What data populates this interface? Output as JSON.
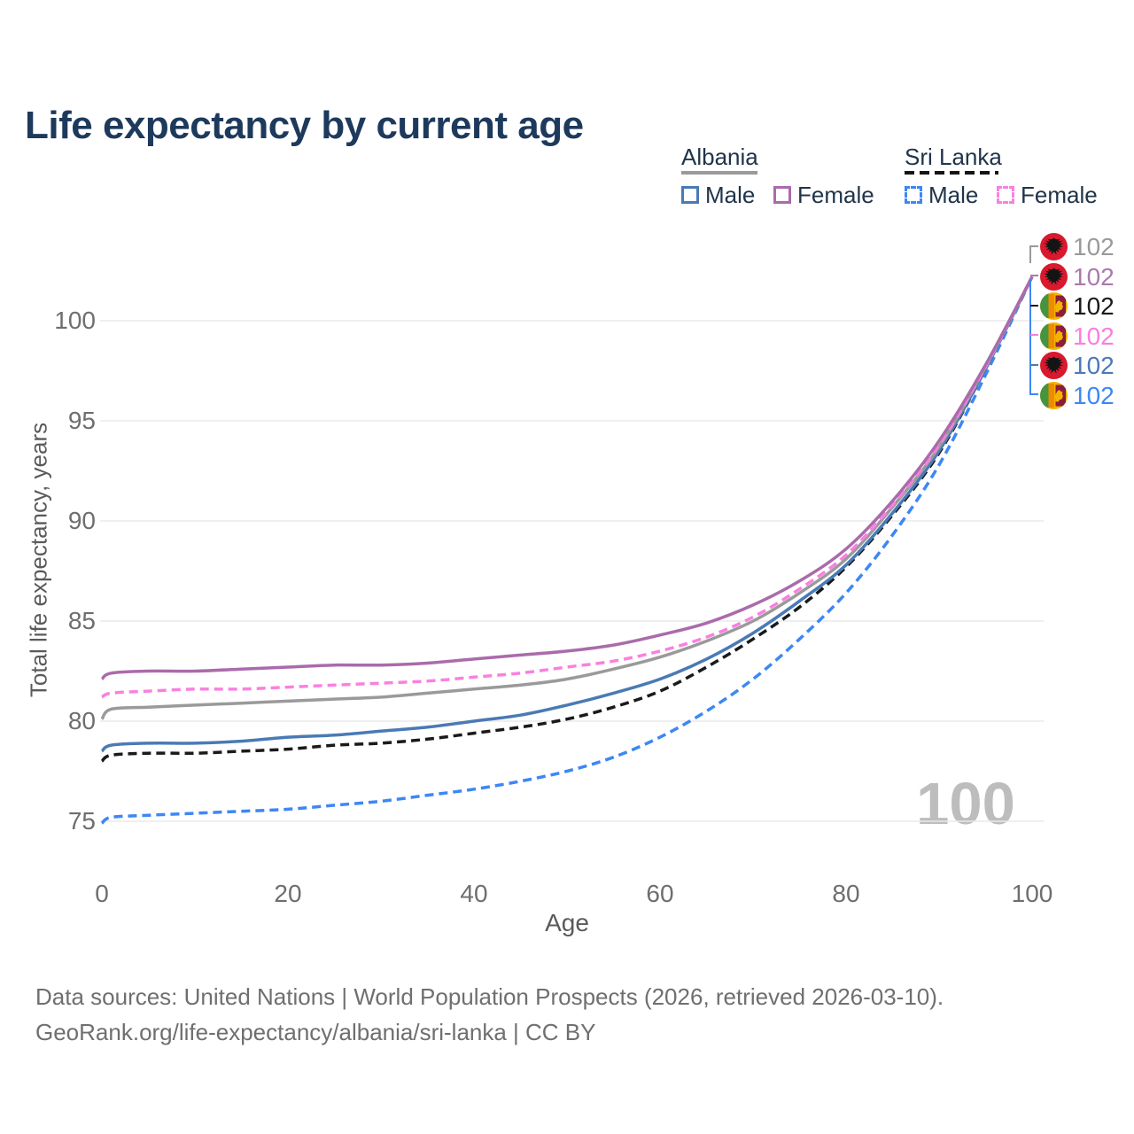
{
  "header": {
    "title": "Life expectancy by current age"
  },
  "legend": {
    "groups": [
      {
        "country": "Albania",
        "line_style": "solid",
        "line_color": "#9a9a9a",
        "items": [
          {
            "label": "Male",
            "color": "#4a7ab5",
            "style": "solid"
          },
          {
            "label": "Female",
            "color": "#aa6bab",
            "style": "solid"
          }
        ]
      },
      {
        "country": "Sri Lanka",
        "line_style": "dashed",
        "line_color": "#141414",
        "items": [
          {
            "label": "Male",
            "color": "#3d87f5",
            "style": "dashed"
          },
          {
            "label": "Female",
            "color": "#fa80e0",
            "style": "dashed"
          }
        ]
      }
    ]
  },
  "chart_data": {
    "type": "line",
    "title": "Life expectancy by current age",
    "xlabel": "Age",
    "ylabel": "Total life expectancy, years",
    "xlim": [
      0,
      100
    ],
    "ylim": [
      73.5,
      103
    ],
    "xticks": [
      0,
      20,
      40,
      60,
      80,
      100
    ],
    "yticks": [
      75,
      80,
      85,
      90,
      95,
      100
    ],
    "grid": "horizontal",
    "legend_position": "top-right",
    "x": [
      0,
      1,
      5,
      10,
      15,
      20,
      25,
      30,
      35,
      40,
      45,
      50,
      55,
      60,
      65,
      70,
      75,
      80,
      85,
      90,
      95,
      100
    ],
    "series": [
      {
        "name": "Sri Lanka — Male",
        "country": "Sri Lanka",
        "sex": "male",
        "color": "#3d87f5",
        "dash": true,
        "values": [
          74.9,
          75.2,
          75.3,
          75.4,
          75.5,
          75.6,
          75.8,
          76.0,
          76.3,
          76.6,
          77.0,
          77.5,
          78.2,
          79.2,
          80.5,
          82.1,
          84.1,
          86.4,
          89.3,
          92.8,
          97.3,
          102.2
        ]
      },
      {
        "name": "Sri Lanka — Both sexes",
        "country": "Sri Lanka",
        "sex": "both",
        "color": "#1a1a1a",
        "dash": true,
        "values": [
          78.0,
          78.3,
          78.4,
          78.4,
          78.5,
          78.6,
          78.8,
          78.9,
          79.1,
          79.4,
          79.7,
          80.1,
          80.7,
          81.5,
          82.7,
          84.1,
          85.7,
          87.7,
          90.3,
          93.4,
          97.6,
          102.2
        ]
      },
      {
        "name": "Albania — Male",
        "country": "Albania",
        "sex": "male",
        "color": "#4a7ab5",
        "dash": false,
        "values": [
          78.5,
          78.8,
          78.9,
          78.9,
          79.0,
          79.2,
          79.3,
          79.5,
          79.7,
          80.0,
          80.3,
          80.8,
          81.4,
          82.1,
          83.1,
          84.4,
          86.0,
          87.8,
          90.4,
          93.5,
          97.6,
          102.2
        ]
      },
      {
        "name": "Albania — Both sexes",
        "country": "Albania",
        "sex": "both",
        "color": "#9a9a9a",
        "dash": false,
        "values": [
          80.1,
          80.6,
          80.7,
          80.8,
          80.9,
          81.0,
          81.1,
          81.2,
          81.4,
          81.6,
          81.8,
          82.1,
          82.6,
          83.2,
          84.0,
          85.0,
          86.4,
          88.1,
          90.7,
          93.7,
          97.7,
          102.2
        ]
      },
      {
        "name": "Sri Lanka — Female",
        "country": "Sri Lanka",
        "sex": "female",
        "color": "#fa80e0",
        "dash": true,
        "values": [
          81.2,
          81.4,
          81.5,
          81.6,
          81.6,
          81.7,
          81.8,
          81.9,
          82.0,
          82.2,
          82.4,
          82.7,
          83.0,
          83.5,
          84.2,
          85.2,
          86.6,
          88.3,
          90.8,
          93.8,
          97.7,
          102.2
        ]
      },
      {
        "name": "Albania — Female",
        "country": "Albania",
        "sex": "female",
        "color": "#aa6bab",
        "dash": false,
        "values": [
          82.1,
          82.4,
          82.5,
          82.5,
          82.6,
          82.7,
          82.8,
          82.8,
          82.9,
          83.1,
          83.3,
          83.5,
          83.8,
          84.3,
          84.9,
          85.8,
          87.0,
          88.6,
          91.0,
          94.0,
          97.8,
          102.2
        ]
      }
    ],
    "end_labels": [
      {
        "country": "Albania",
        "series": "Albania — Both sexes",
        "value": "102",
        "color": "#9a9a9a"
      },
      {
        "country": "Albania",
        "series": "Albania — Female",
        "value": "102",
        "color": "#ab79ad"
      },
      {
        "country": "Sri Lanka",
        "series": "Sri Lanka — Both sexes",
        "value": "102",
        "color": "#1a1a1a"
      },
      {
        "country": "Sri Lanka",
        "series": "Sri Lanka — Female",
        "value": "102",
        "color": "#fa7ee2"
      },
      {
        "country": "Albania",
        "series": "Albania — Male",
        "value": "102",
        "color": "#4a7ab8"
      },
      {
        "country": "Sri Lanka",
        "series": "Sri Lanka — Male",
        "value": "102",
        "color": "#3d87f5"
      }
    ],
    "watermark": "100"
  },
  "footer": {
    "line1": "Data sources: United Nations | World Population Prospects (2026, retrieved 2026-03-10).",
    "line2": "GeoRank.org/life-expectancy/albania/sri-lanka | CC BY"
  }
}
